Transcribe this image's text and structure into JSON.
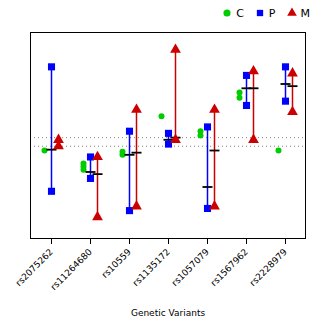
{
  "chart_data": {
    "type": "range",
    "categories": [
      "rs2075262",
      "rs11264680",
      "rs10559",
      "rs1135172",
      "rs1057079",
      "rs1567962",
      "rs2228979"
    ],
    "xlabel": "Genetic Variants",
    "ylim": [
      0.28,
      0.76
    ],
    "tick_labels": "x",
    "legend": "top-right",
    "reference_lines": {
      "values": [
        0.515,
        0.495
      ],
      "color": "gray",
      "line_style": "dotted"
    },
    "series": [
      {
        "name": "C",
        "type": "scatter",
        "color": "#00CC00",
        "marker": "circle",
        "values": [
          [
            0.485
          ],
          [
            0.455,
            0.448,
            0.44
          ],
          [
            0.482,
            0.475
          ],
          [
            0.565
          ],
          [
            0.53,
            0.52
          ],
          [
            0.62,
            0.608
          ],
          [
            0.485
          ]
        ]
      },
      {
        "name": "P",
        "type": "range",
        "color": "#0000FF",
        "marker": "square",
        "low": [
          0.39,
          0.42,
          0.345,
          0.5,
          0.35,
          0.59,
          0.6
        ],
        "high": [
          0.68,
          0.47,
          0.53,
          0.525,
          0.54,
          0.66,
          0.68
        ],
        "median": [
          0.487,
          0.435,
          0.475,
          0.51,
          0.4,
          0.63,
          0.64
        ]
      },
      {
        "name": "M",
        "type": "range",
        "color": "#CC0000",
        "marker": "triangle",
        "low": [
          0.495,
          0.33,
          0.355,
          0.51,
          0.355,
          0.51,
          0.575
        ],
        "high": [
          0.51,
          0.47,
          0.58,
          0.72,
          0.58,
          0.67,
          0.665
        ],
        "median": [
          null,
          0.43,
          0.48,
          0.515,
          0.485,
          0.63,
          0.635
        ]
      }
    ]
  }
}
